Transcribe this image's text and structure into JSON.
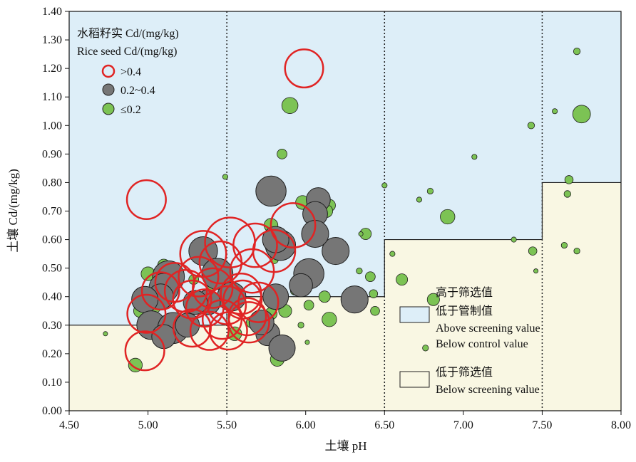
{
  "chart_data": {
    "type": "scatter",
    "xlabel": "土壤 pH",
    "ylabel": "土壤 Cd/(mg/kg)",
    "xlim": [
      4.5,
      8.0
    ],
    "ylim": [
      0.0,
      1.4
    ],
    "xticks": [
      "4.50",
      "5.00",
      "5.50",
      "6.00",
      "6.50",
      "7.00",
      "7.50",
      "8.00"
    ],
    "yticks": [
      "0.00",
      "0.10",
      "0.20",
      "0.30",
      "0.40",
      "0.50",
      "0.60",
      "0.70",
      "0.80",
      "0.90",
      "1.00",
      "1.10",
      "1.20",
      "1.30",
      "1.40"
    ],
    "vertical_dotted_lines_x": [
      5.5,
      6.5,
      7.5
    ],
    "screening_steps": [
      {
        "x_from": 4.5,
        "x_to": 5.5,
        "y": 0.3
      },
      {
        "x_from": 5.5,
        "x_to": 6.5,
        "y": 0.4
      },
      {
        "x_from": 6.5,
        "x_to": 7.5,
        "y": 0.6
      },
      {
        "x_from": 7.5,
        "x_to": 8.0,
        "y": 0.8
      }
    ],
    "size_legend": {
      "title_cn": "水稻籽实 Cd/(mg/kg)",
      "title_en": "Rice seed Cd/(mg/kg)",
      "entries": [
        {
          "label": ">0.4",
          "group": "high"
        },
        {
          "label": "0.2~0.4",
          "group": "mid"
        },
        {
          "label": "≤0.2",
          "group": "low"
        }
      ]
    },
    "region_legend": {
      "above_cn_1": "高于筛选值",
      "above_cn_2": "低于管制值",
      "above_en_1": "Above screening value",
      "above_en_2": "Below control value",
      "below_cn": "低于筛选值",
      "below_en": "Below screening value"
    },
    "colors": {
      "above_region": "#ddeef8",
      "below_region": "#f9f7e3",
      "high": "#e02424",
      "mid": "#767676",
      "low": "#7cc354"
    },
    "series": [
      {
        "group": "high",
        "points": [
          [
            5.99,
            1.2,
            0.45
          ],
          [
            4.99,
            0.74,
            0.46
          ],
          [
            5.92,
            0.65,
            0.53
          ],
          [
            5.52,
            0.59,
            0.6
          ],
          [
            5.35,
            0.55,
            0.55
          ],
          [
            5.46,
            0.52,
            0.5
          ],
          [
            5.68,
            0.58,
            0.52
          ],
          [
            5.8,
            0.56,
            0.5
          ],
          [
            5.66,
            0.49,
            0.52
          ],
          [
            5.32,
            0.47,
            0.47
          ],
          [
            5.17,
            0.45,
            0.46
          ],
          [
            5.24,
            0.42,
            0.5
          ],
          [
            5.41,
            0.43,
            0.47
          ],
          [
            5.28,
            0.39,
            0.45
          ],
          [
            5.59,
            0.41,
            0.48
          ],
          [
            5.36,
            0.36,
            0.44
          ],
          [
            5.6,
            0.39,
            0.45
          ],
          [
            5.7,
            0.38,
            0.47
          ],
          [
            5.5,
            0.37,
            0.45
          ],
          [
            5.47,
            0.32,
            0.46
          ],
          [
            5.63,
            0.33,
            0.44
          ],
          [
            5.28,
            0.29,
            0.44
          ],
          [
            5.39,
            0.28,
            0.45
          ],
          [
            5.51,
            0.28,
            0.44
          ],
          [
            5.64,
            0.31,
            0.48
          ],
          [
            4.99,
            0.34,
            0.45
          ],
          [
            4.98,
            0.21,
            0.46
          ],
          [
            5.08,
            0.42,
            0.44
          ]
        ]
      },
      {
        "group": "mid",
        "points": [
          [
            5.78,
            0.77,
            0.35
          ],
          [
            5.35,
            0.56,
            0.33
          ],
          [
            5.84,
            0.58,
            0.35
          ],
          [
            5.81,
            0.6,
            0.3
          ],
          [
            6.02,
            0.48,
            0.35
          ],
          [
            6.19,
            0.56,
            0.31
          ],
          [
            6.08,
            0.74,
            0.27
          ],
          [
            6.06,
            0.69,
            0.28
          ],
          [
            6.06,
            0.62,
            0.31
          ],
          [
            5.44,
            0.48,
            0.36
          ],
          [
            5.13,
            0.47,
            0.37
          ],
          [
            5.1,
            0.43,
            0.34
          ],
          [
            5.08,
            0.4,
            0.29
          ],
          [
            4.98,
            0.39,
            0.3
          ],
          [
            5.53,
            0.4,
            0.33
          ],
          [
            5.38,
            0.38,
            0.28
          ],
          [
            5.3,
            0.38,
            0.27
          ],
          [
            5.81,
            0.4,
            0.29
          ],
          [
            5.97,
            0.44,
            0.26
          ],
          [
            6.31,
            0.39,
            0.31
          ],
          [
            5.02,
            0.3,
            0.33
          ],
          [
            5.16,
            0.29,
            0.36
          ],
          [
            5.1,
            0.26,
            0.27
          ],
          [
            5.25,
            0.3,
            0.27
          ],
          [
            5.76,
            0.27,
            0.27
          ],
          [
            5.85,
            0.22,
            0.3
          ],
          [
            5.72,
            0.31,
            0.28
          ]
        ]
      },
      {
        "group": "low",
        "points": [
          [
            7.72,
            1.26,
            0.05
          ],
          [
            7.75,
            1.04,
            0.19
          ],
          [
            5.9,
            1.07,
            0.17
          ],
          [
            7.43,
            1.0,
            0.05
          ],
          [
            7.58,
            1.05,
            0.03
          ],
          [
            7.07,
            0.89,
            0.03
          ],
          [
            5.85,
            0.9,
            0.09
          ],
          [
            6.9,
            0.68,
            0.15
          ],
          [
            7.67,
            0.81,
            0.07
          ],
          [
            6.79,
            0.77,
            0.04
          ],
          [
            7.66,
            0.76,
            0.05
          ],
          [
            6.72,
            0.74,
            0.03
          ],
          [
            5.98,
            0.73,
            0.14
          ],
          [
            6.15,
            0.72,
            0.12
          ],
          [
            6.13,
            0.7,
            0.13
          ],
          [
            5.78,
            0.65,
            0.14
          ],
          [
            6.38,
            0.62,
            0.11
          ],
          [
            6.5,
            0.79,
            0.03
          ],
          [
            6.35,
            0.62,
            0.02
          ],
          [
            5.49,
            0.82,
            0.03
          ],
          [
            5.8,
            0.53,
            0.07
          ],
          [
            6.34,
            0.49,
            0.04
          ],
          [
            6.41,
            0.47,
            0.09
          ],
          [
            6.43,
            0.41,
            0.07
          ],
          [
            6.44,
            0.35,
            0.08
          ],
          [
            6.55,
            0.55,
            0.03
          ],
          [
            6.61,
            0.46,
            0.11
          ],
          [
            6.81,
            0.39,
            0.12
          ],
          [
            7.32,
            0.6,
            0.03
          ],
          [
            7.44,
            0.56,
            0.07
          ],
          [
            7.64,
            0.58,
            0.04
          ],
          [
            7.72,
            0.56,
            0.04
          ],
          [
            7.46,
            0.49,
            0.02
          ],
          [
            5.1,
            0.51,
            0.12
          ],
          [
            5.0,
            0.48,
            0.14
          ],
          [
            5.29,
            0.46,
            0.09
          ],
          [
            5.4,
            0.43,
            0.07
          ],
          [
            5.08,
            0.39,
            0.1
          ],
          [
            5.05,
            0.36,
            0.08
          ],
          [
            4.95,
            0.35,
            0.13
          ],
          [
            5.2,
            0.28,
            0.1
          ],
          [
            5.55,
            0.27,
            0.14
          ],
          [
            5.1,
            0.31,
            0.08
          ],
          [
            5.66,
            0.31,
            0.11
          ],
          [
            5.78,
            0.34,
            0.12
          ],
          [
            5.87,
            0.35,
            0.13
          ],
          [
            5.93,
            0.42,
            0.07
          ],
          [
            6.02,
            0.37,
            0.09
          ],
          [
            6.15,
            0.32,
            0.15
          ],
          [
            6.12,
            0.4,
            0.11
          ],
          [
            5.97,
            0.3,
            0.04
          ],
          [
            5.82,
            0.18,
            0.14
          ],
          [
            4.92,
            0.16,
            0.14
          ],
          [
            4.73,
            0.27,
            0.02
          ],
          [
            6.01,
            0.24,
            0.02
          ],
          [
            6.76,
            0.22,
            0.04
          ]
        ]
      }
    ]
  }
}
